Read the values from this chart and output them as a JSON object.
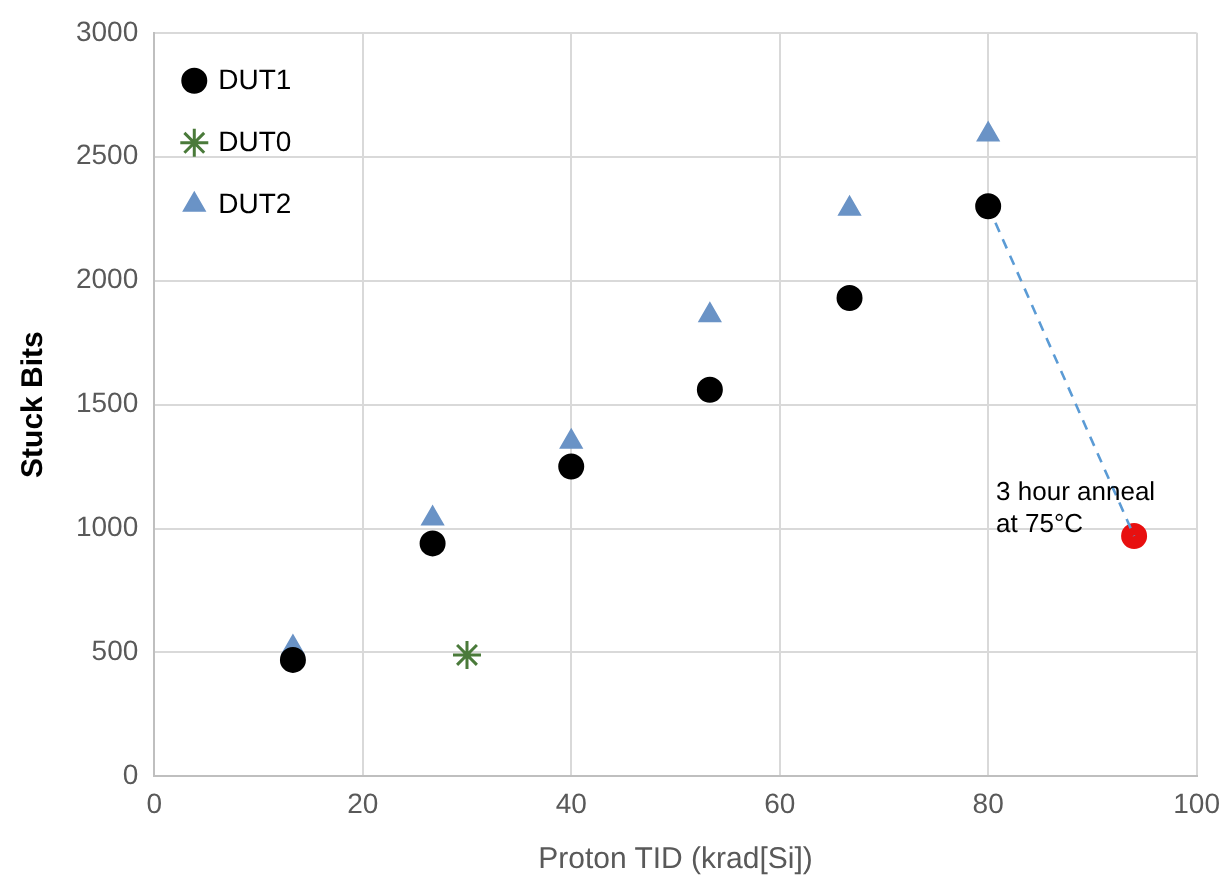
{
  "chart_data": {
    "type": "scatter",
    "xlabel": "Proton TID (krad[Si])",
    "ylabel": "Stuck Bits",
    "xlim": [
      0,
      100
    ],
    "xticks": [
      0,
      20,
      40,
      60,
      80,
      100
    ],
    "ylim": [
      0,
      3000
    ],
    "yticks": [
      0,
      500,
      1000,
      1500,
      2000,
      2500,
      3000
    ],
    "grid": true,
    "legend": "top left",
    "series": [
      {
        "name": "DUT1",
        "color": "#000000",
        "marker": "circle",
        "x": [
          13.3,
          26.7,
          40,
          53.3,
          66.7,
          80
        ],
        "values": [
          470,
          940,
          1250,
          1560,
          1930,
          2300
        ]
      },
      {
        "name": "DUT0",
        "color": "#4a7a3a",
        "marker": "cross",
        "x": [
          30
        ],
        "values": [
          490
        ]
      },
      {
        "name": "DUT2",
        "color": "#6a93c6",
        "marker": "triangle",
        "x": [
          13.3,
          26.7,
          40,
          53.3,
          66.7,
          80
        ],
        "values": [
          520,
          1040,
          1350,
          1860,
          2290,
          2590
        ]
      },
      {
        "type": "line",
        "color": "#5b9bd5",
        "line_style": "dashed",
        "marker": "none",
        "x": [
          80,
          94
        ],
        "values": [
          2300,
          970
        ]
      },
      {
        "color": "#e81010",
        "marker": "circle",
        "x": [
          94
        ],
        "values": [
          970
        ]
      }
    ],
    "annotations": [
      {
        "text": "3 hour anneal\nat 75°C",
        "x": 94,
        "y": 970
      }
    ]
  }
}
